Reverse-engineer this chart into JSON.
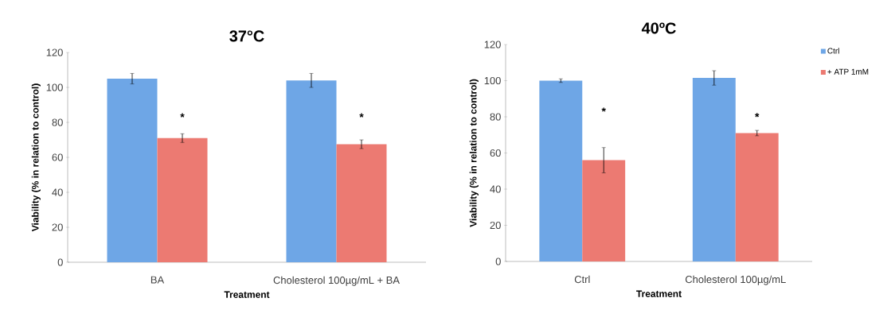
{
  "chart_data": [
    {
      "type": "bar",
      "title": "37°C",
      "xlabel": "Treatment",
      "ylabel": "Viability (% in relation to control)",
      "categories": [
        "BA",
        "Cholesterol 100µg/mL + BA"
      ],
      "series": [
        {
          "color": "#6ea6e6",
          "values": [
            105,
            104
          ],
          "errors": [
            3,
            4
          ]
        },
        {
          "color": "#ec7a72",
          "values": [
            71,
            67.5
          ],
          "errors": [
            2.5,
            2.5
          ]
        }
      ],
      "ylim": [
        0,
        120
      ],
      "yticks": [
        0,
        20,
        40,
        60,
        80,
        100,
        120
      ],
      "legend": false,
      "annotations": [
        {
          "text": "*",
          "x": "BA",
          "y": 83
        },
        {
          "text": "*",
          "x": "Cholesterol 100µg/mL + BA",
          "y": 83
        }
      ]
    },
    {
      "type": "bar",
      "title": "40ºC",
      "xlabel": "Treatment",
      "ylabel": "Viability (% in relation to control)",
      "categories": [
        "Ctrl",
        "Cholesterol 100µg/mL"
      ],
      "series": [
        {
          "name": "Ctrl",
          "color": "#6ea6e6",
          "values": [
            100,
            101.5
          ],
          "errors": [
            1,
            4
          ]
        },
        {
          "name": "+ ATP 1mM",
          "color": "#ec7a72",
          "values": [
            56,
            71
          ],
          "errors": [
            7,
            1.5
          ]
        }
      ],
      "ylim": [
        0,
        120
      ],
      "yticks": [
        0,
        20,
        40,
        60,
        80,
        100,
        120
      ],
      "legend": "top right",
      "annotations": [
        {
          "text": "*",
          "x": "Ctrl",
          "y": 83
        },
        {
          "text": "*",
          "x": "Cholesterol 100µg/mL",
          "y": 80
        }
      ]
    }
  ]
}
